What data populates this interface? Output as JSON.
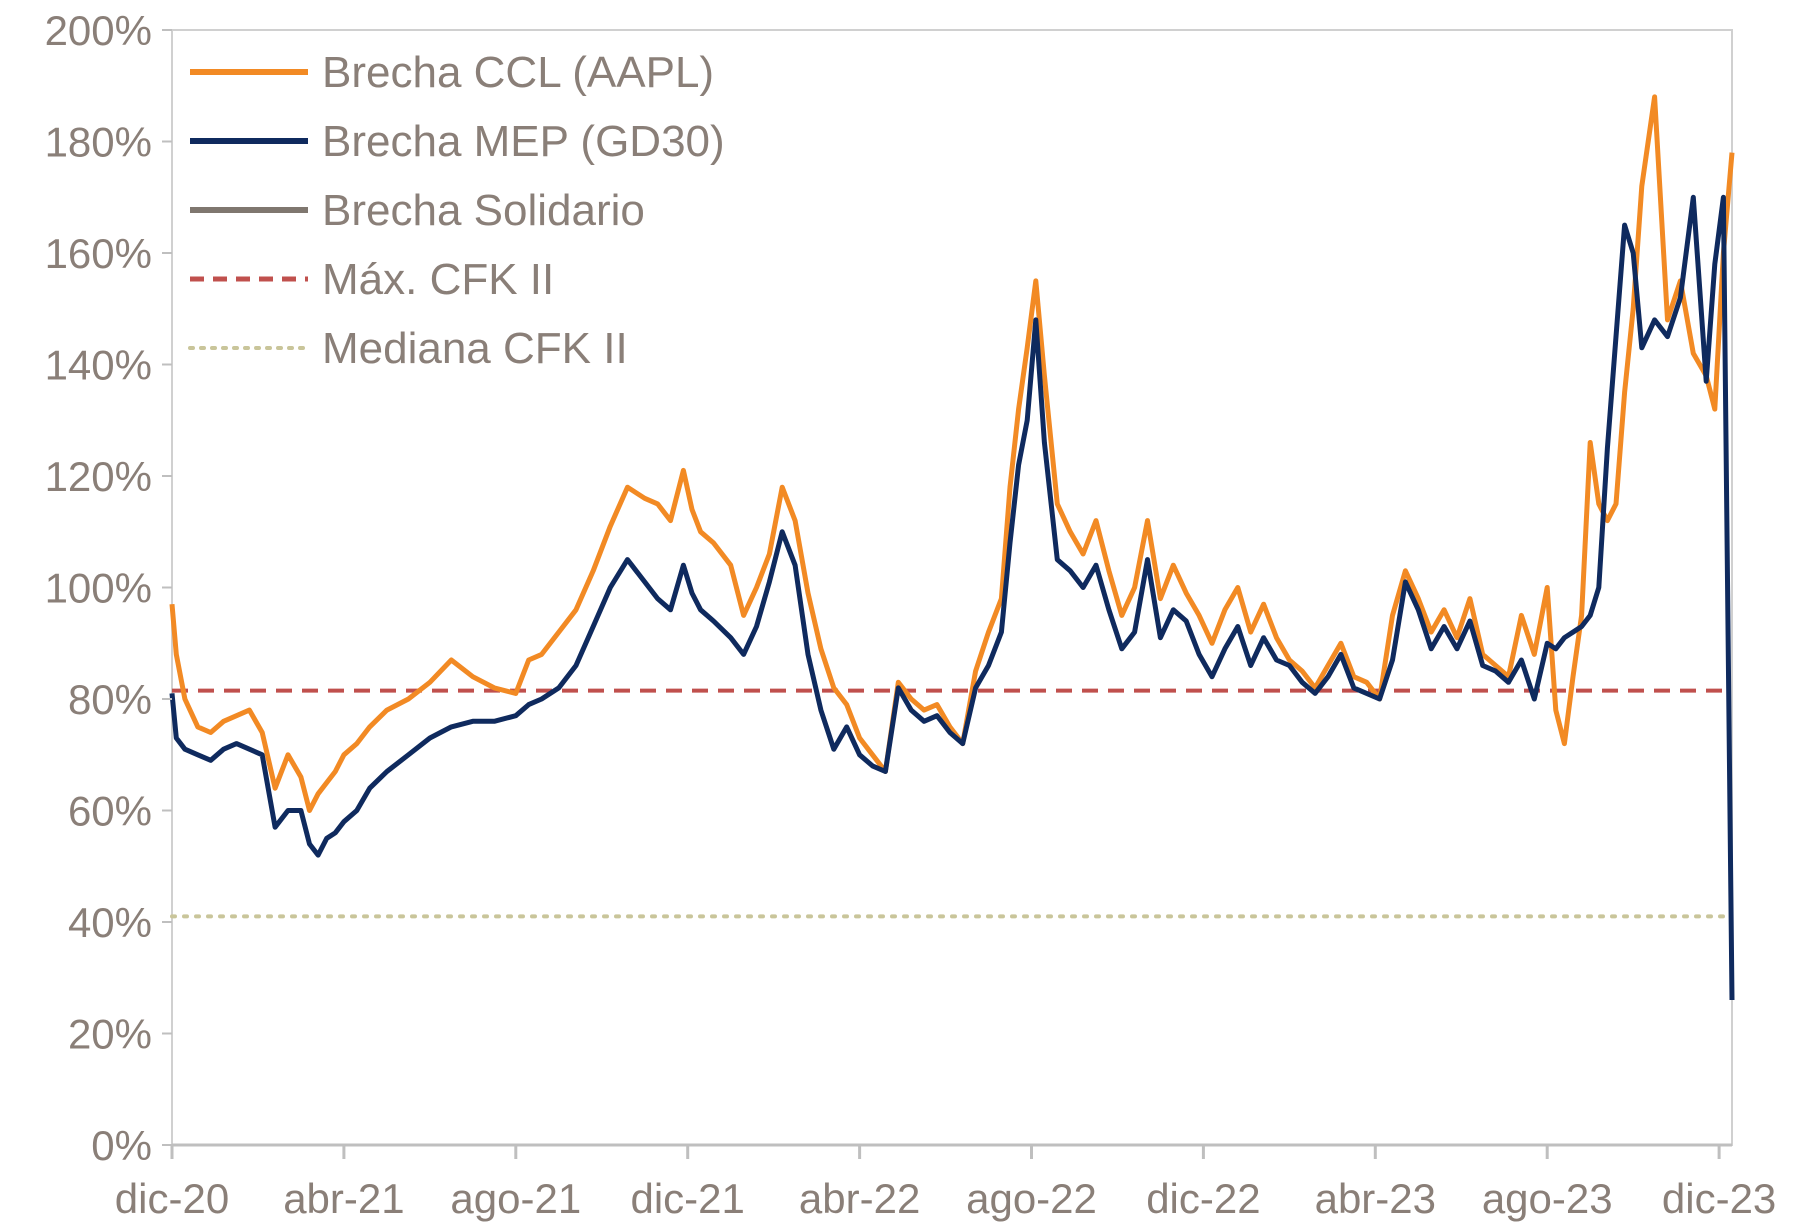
{
  "chart_data": {
    "type": "line",
    "title": "",
    "xlabel": "",
    "ylabel": "",
    "ylim": [
      0,
      200
    ],
    "xlim": [
      0,
      36.3
    ],
    "y_ticks": [
      {
        "value": 0,
        "label": "0%"
      },
      {
        "value": 20,
        "label": "20%"
      },
      {
        "value": 40,
        "label": "40%"
      },
      {
        "value": 60,
        "label": "60%"
      },
      {
        "value": 80,
        "label": "80%"
      },
      {
        "value": 100,
        "label": "100%"
      },
      {
        "value": 120,
        "label": "120%"
      },
      {
        "value": 140,
        "label": "140%"
      },
      {
        "value": 160,
        "label": "160%"
      },
      {
        "value": 180,
        "label": "180%"
      },
      {
        "value": 200,
        "label": "200%"
      }
    ],
    "x_ticks": [
      {
        "value": 0,
        "label": "dic-20"
      },
      {
        "value": 4,
        "label": "abr-21"
      },
      {
        "value": 8,
        "label": "ago-21"
      },
      {
        "value": 12,
        "label": "dic-21"
      },
      {
        "value": 16,
        "label": "abr-22"
      },
      {
        "value": 20,
        "label": "ago-22"
      },
      {
        "value": 24,
        "label": "dic-22"
      },
      {
        "value": 28,
        "label": "abr-23"
      },
      {
        "value": 32,
        "label": "ago-23"
      },
      {
        "value": 36,
        "label": "dic-23"
      }
    ],
    "legend_position": "top-left",
    "series": [
      {
        "name": "Brecha CCL (AAPL)",
        "color": "#f28a24",
        "style": "solid",
        "x": [
          0,
          0.1,
          0.3,
          0.6,
          0.9,
          1.2,
          1.5,
          1.8,
          2.1,
          2.4,
          2.7,
          3.0,
          3.2,
          3.4,
          3.6,
          3.8,
          4.0,
          4.3,
          4.6,
          5.0,
          5.5,
          6.0,
          6.5,
          7.0,
          7.5,
          8.0,
          8.3,
          8.6,
          9.0,
          9.4,
          9.8,
          10.2,
          10.6,
          11.0,
          11.3,
          11.6,
          11.9,
          12.1,
          12.3,
          12.6,
          13.0,
          13.3,
          13.6,
          13.9,
          14.2,
          14.5,
          14.8,
          15.1,
          15.4,
          15.7,
          16.0,
          16.3,
          16.6,
          16.9,
          17.2,
          17.5,
          17.8,
          18.1,
          18.4,
          18.7,
          19.0,
          19.3,
          19.5,
          19.7,
          19.9,
          20.1,
          20.3,
          20.6,
          20.9,
          21.2,
          21.5,
          21.8,
          22.1,
          22.4,
          22.7,
          23.0,
          23.3,
          23.6,
          23.9,
          24.2,
          24.5,
          24.8,
          25.1,
          25.4,
          25.7,
          26.0,
          26.3,
          26.6,
          26.9,
          27.2,
          27.5,
          27.8,
          28.1,
          28.4,
          28.7,
          29.0,
          29.3,
          29.6,
          29.9,
          30.2,
          30.5,
          30.8,
          31.1,
          31.4,
          31.7,
          32.0,
          32.2,
          32.4,
          32.6,
          32.8,
          33.0,
          33.2,
          33.4,
          33.6,
          33.8,
          34.0,
          34.2,
          34.5,
          34.8,
          35.1,
          35.4,
          35.7,
          35.9,
          36.1,
          36.3
        ],
        "values": [
          97,
          88,
          80,
          75,
          74,
          76,
          77,
          78,
          74,
          64,
          70,
          66,
          60,
          63,
          65,
          67,
          70,
          72,
          75,
          78,
          80,
          83,
          87,
          84,
          82,
          81,
          87,
          88,
          92,
          96,
          103,
          111,
          118,
          116,
          115,
          112,
          121,
          114,
          110,
          108,
          104,
          95,
          100,
          106,
          118,
          112,
          99,
          89,
          82,
          79,
          73,
          70,
          67,
          83,
          80,
          78,
          79,
          75,
          72,
          85,
          92,
          98,
          118,
          132,
          143,
          155,
          138,
          115,
          110,
          106,
          112,
          103,
          95,
          100,
          112,
          98,
          104,
          99,
          95,
          90,
          96,
          100,
          92,
          97,
          91,
          87,
          85,
          82,
          86,
          90,
          84,
          83,
          80,
          95,
          103,
          98,
          92,
          96,
          91,
          98,
          88,
          86,
          84,
          95,
          88,
          100,
          78,
          72,
          84,
          95,
          126,
          115,
          112,
          115,
          135,
          150,
          172,
          188,
          148,
          155,
          142,
          138,
          132,
          160,
          178
        ]
      },
      {
        "name": "Brecha MEP (GD30)",
        "color": "#0f2a5e",
        "style": "solid",
        "x": [
          0,
          0.1,
          0.3,
          0.6,
          0.9,
          1.2,
          1.5,
          1.8,
          2.1,
          2.4,
          2.7,
          3.0,
          3.2,
          3.4,
          3.6,
          3.8,
          4.0,
          4.3,
          4.6,
          5.0,
          5.5,
          6.0,
          6.5,
          7.0,
          7.5,
          8.0,
          8.3,
          8.6,
          9.0,
          9.4,
          9.8,
          10.2,
          10.6,
          11.0,
          11.3,
          11.6,
          11.9,
          12.1,
          12.3,
          12.6,
          13.0,
          13.3,
          13.6,
          13.9,
          14.2,
          14.5,
          14.8,
          15.1,
          15.4,
          15.7,
          16.0,
          16.3,
          16.6,
          16.9,
          17.2,
          17.5,
          17.8,
          18.1,
          18.4,
          18.7,
          19.0,
          19.3,
          19.5,
          19.7,
          19.9,
          20.1,
          20.3,
          20.6,
          20.9,
          21.2,
          21.5,
          21.8,
          22.1,
          22.4,
          22.7,
          23.0,
          23.3,
          23.6,
          23.9,
          24.2,
          24.5,
          24.8,
          25.1,
          25.4,
          25.7,
          26.0,
          26.3,
          26.6,
          26.9,
          27.2,
          27.5,
          27.8,
          28.1,
          28.4,
          28.7,
          29.0,
          29.3,
          29.6,
          29.9,
          30.2,
          30.5,
          30.8,
          31.1,
          31.4,
          31.7,
          32.0,
          32.2,
          32.4,
          32.6,
          32.8,
          33.0,
          33.2,
          33.4,
          33.6,
          33.8,
          34.0,
          34.2,
          34.5,
          34.8,
          35.1,
          35.4,
          35.7,
          35.9,
          36.1,
          36.3
        ],
        "values": [
          81,
          73,
          71,
          70,
          69,
          71,
          72,
          71,
          70,
          57,
          60,
          60,
          54,
          52,
          55,
          56,
          58,
          60,
          64,
          67,
          70,
          73,
          75,
          76,
          76,
          77,
          79,
          80,
          82,
          86,
          93,
          100,
          105,
          101,
          98,
          96,
          104,
          99,
          96,
          94,
          91,
          88,
          93,
          101,
          110,
          104,
          88,
          78,
          71,
          75,
          70,
          68,
          67,
          82,
          78,
          76,
          77,
          74,
          72,
          82,
          86,
          92,
          108,
          122,
          130,
          148,
          126,
          105,
          103,
          100,
          104,
          96,
          89,
          92,
          105,
          91,
          96,
          94,
          88,
          84,
          89,
          93,
          86,
          91,
          87,
          86,
          83,
          81,
          84,
          88,
          82,
          81,
          80,
          87,
          101,
          96,
          89,
          93,
          89,
          94,
          86,
          85,
          83,
          87,
          80,
          90,
          89,
          91,
          92,
          93,
          95,
          100,
          125,
          145,
          165,
          160,
          143,
          148,
          145,
          152,
          170,
          137,
          158,
          170,
          26
        ]
      },
      {
        "name": "Brecha Solidario",
        "color": "#7f776f",
        "style": "solid",
        "x": [],
        "values": []
      },
      {
        "name": "Máx. CFK II",
        "color": "#c0504d",
        "style": "dashed",
        "x": [
          0,
          36.3
        ],
        "values": [
          81.5,
          81.5
        ]
      },
      {
        "name": "Mediana CFK II",
        "color": "#c9c59a",
        "style": "dotted",
        "x": [
          0,
          36.3
        ],
        "values": [
          41,
          41
        ]
      }
    ]
  }
}
